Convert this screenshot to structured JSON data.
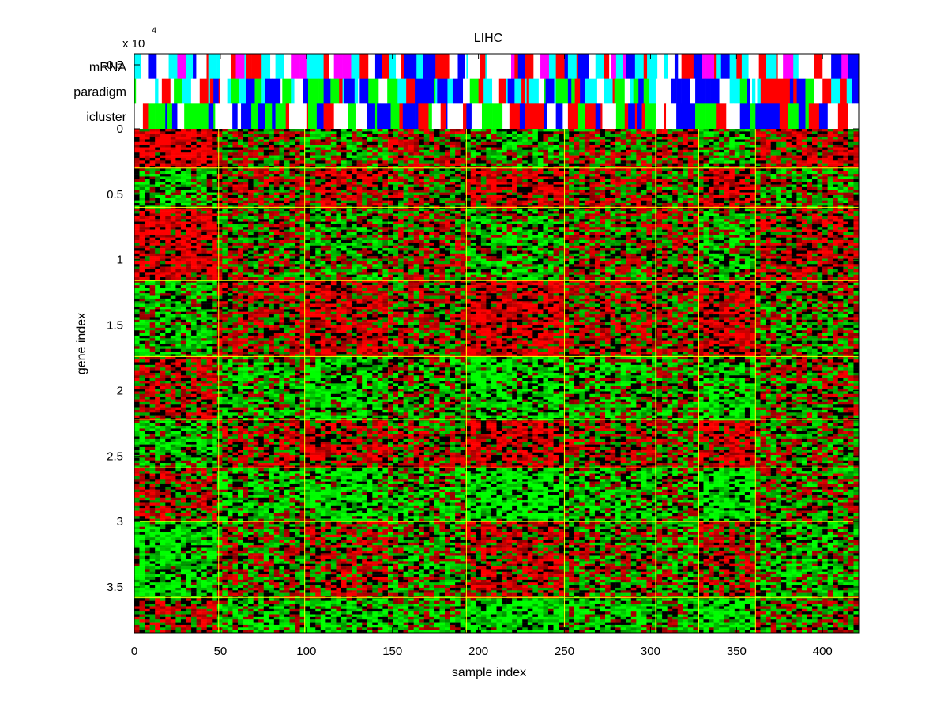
{
  "chart_data": {
    "type": "heatmap",
    "title": "LIHC",
    "xlabel": "sample index",
    "ylabel": "gene index",
    "y_scale_label": "x 10",
    "y_scale_exponent": "4",
    "xlim": [
      0,
      421
    ],
    "ylim": [
      0,
      38500
    ],
    "xticks": [
      0,
      50,
      100,
      150,
      200,
      250,
      300,
      350,
      400
    ],
    "yticks": [
      0,
      5000,
      10000,
      15000,
      20000,
      25000,
      30000,
      35000
    ],
    "ytick_labels": [
      "0",
      "0.5",
      "1",
      "1.5",
      "2",
      "2.5",
      "3",
      "3.5"
    ],
    "top_ytick_label": "-0.5",
    "annotation_tracks": [
      {
        "name": "mRNA",
        "palette": [
          "#ff00ff",
          "#00ffff",
          "#ff0000",
          "#0000ff",
          "#ffffff"
        ]
      },
      {
        "name": "paradigm",
        "palette": [
          "#00ffff",
          "#ff0000",
          "#0000ff",
          "#00ff00",
          "#ffffff"
        ]
      },
      {
        "name": "icluster",
        "palette": [
          "#00ff00",
          "#0000ff",
          "#ff0000",
          "#ffffff"
        ]
      }
    ],
    "sample_cluster_boundaries": [
      49,
      99,
      148,
      193,
      250,
      303,
      328,
      361
    ],
    "gene_cluster_boundaries": [
      3000,
      6000,
      11600,
      17400,
      22200,
      25900,
      30000,
      35800
    ],
    "sample_block_bias": [
      0.45,
      0.15,
      -0.35,
      0.05,
      -0.45,
      0.15,
      0.0,
      0.45,
      0.15
    ],
    "gene_block_bias": [
      0.35,
      0.05,
      0.25,
      0.15,
      -0.2,
      0.1,
      -0.35,
      -0.25,
      -0.35
    ],
    "colors": {
      "up": "#ff0000",
      "down": "#00ff00",
      "neutral": "#000000",
      "boundary": "#ffff00"
    }
  }
}
